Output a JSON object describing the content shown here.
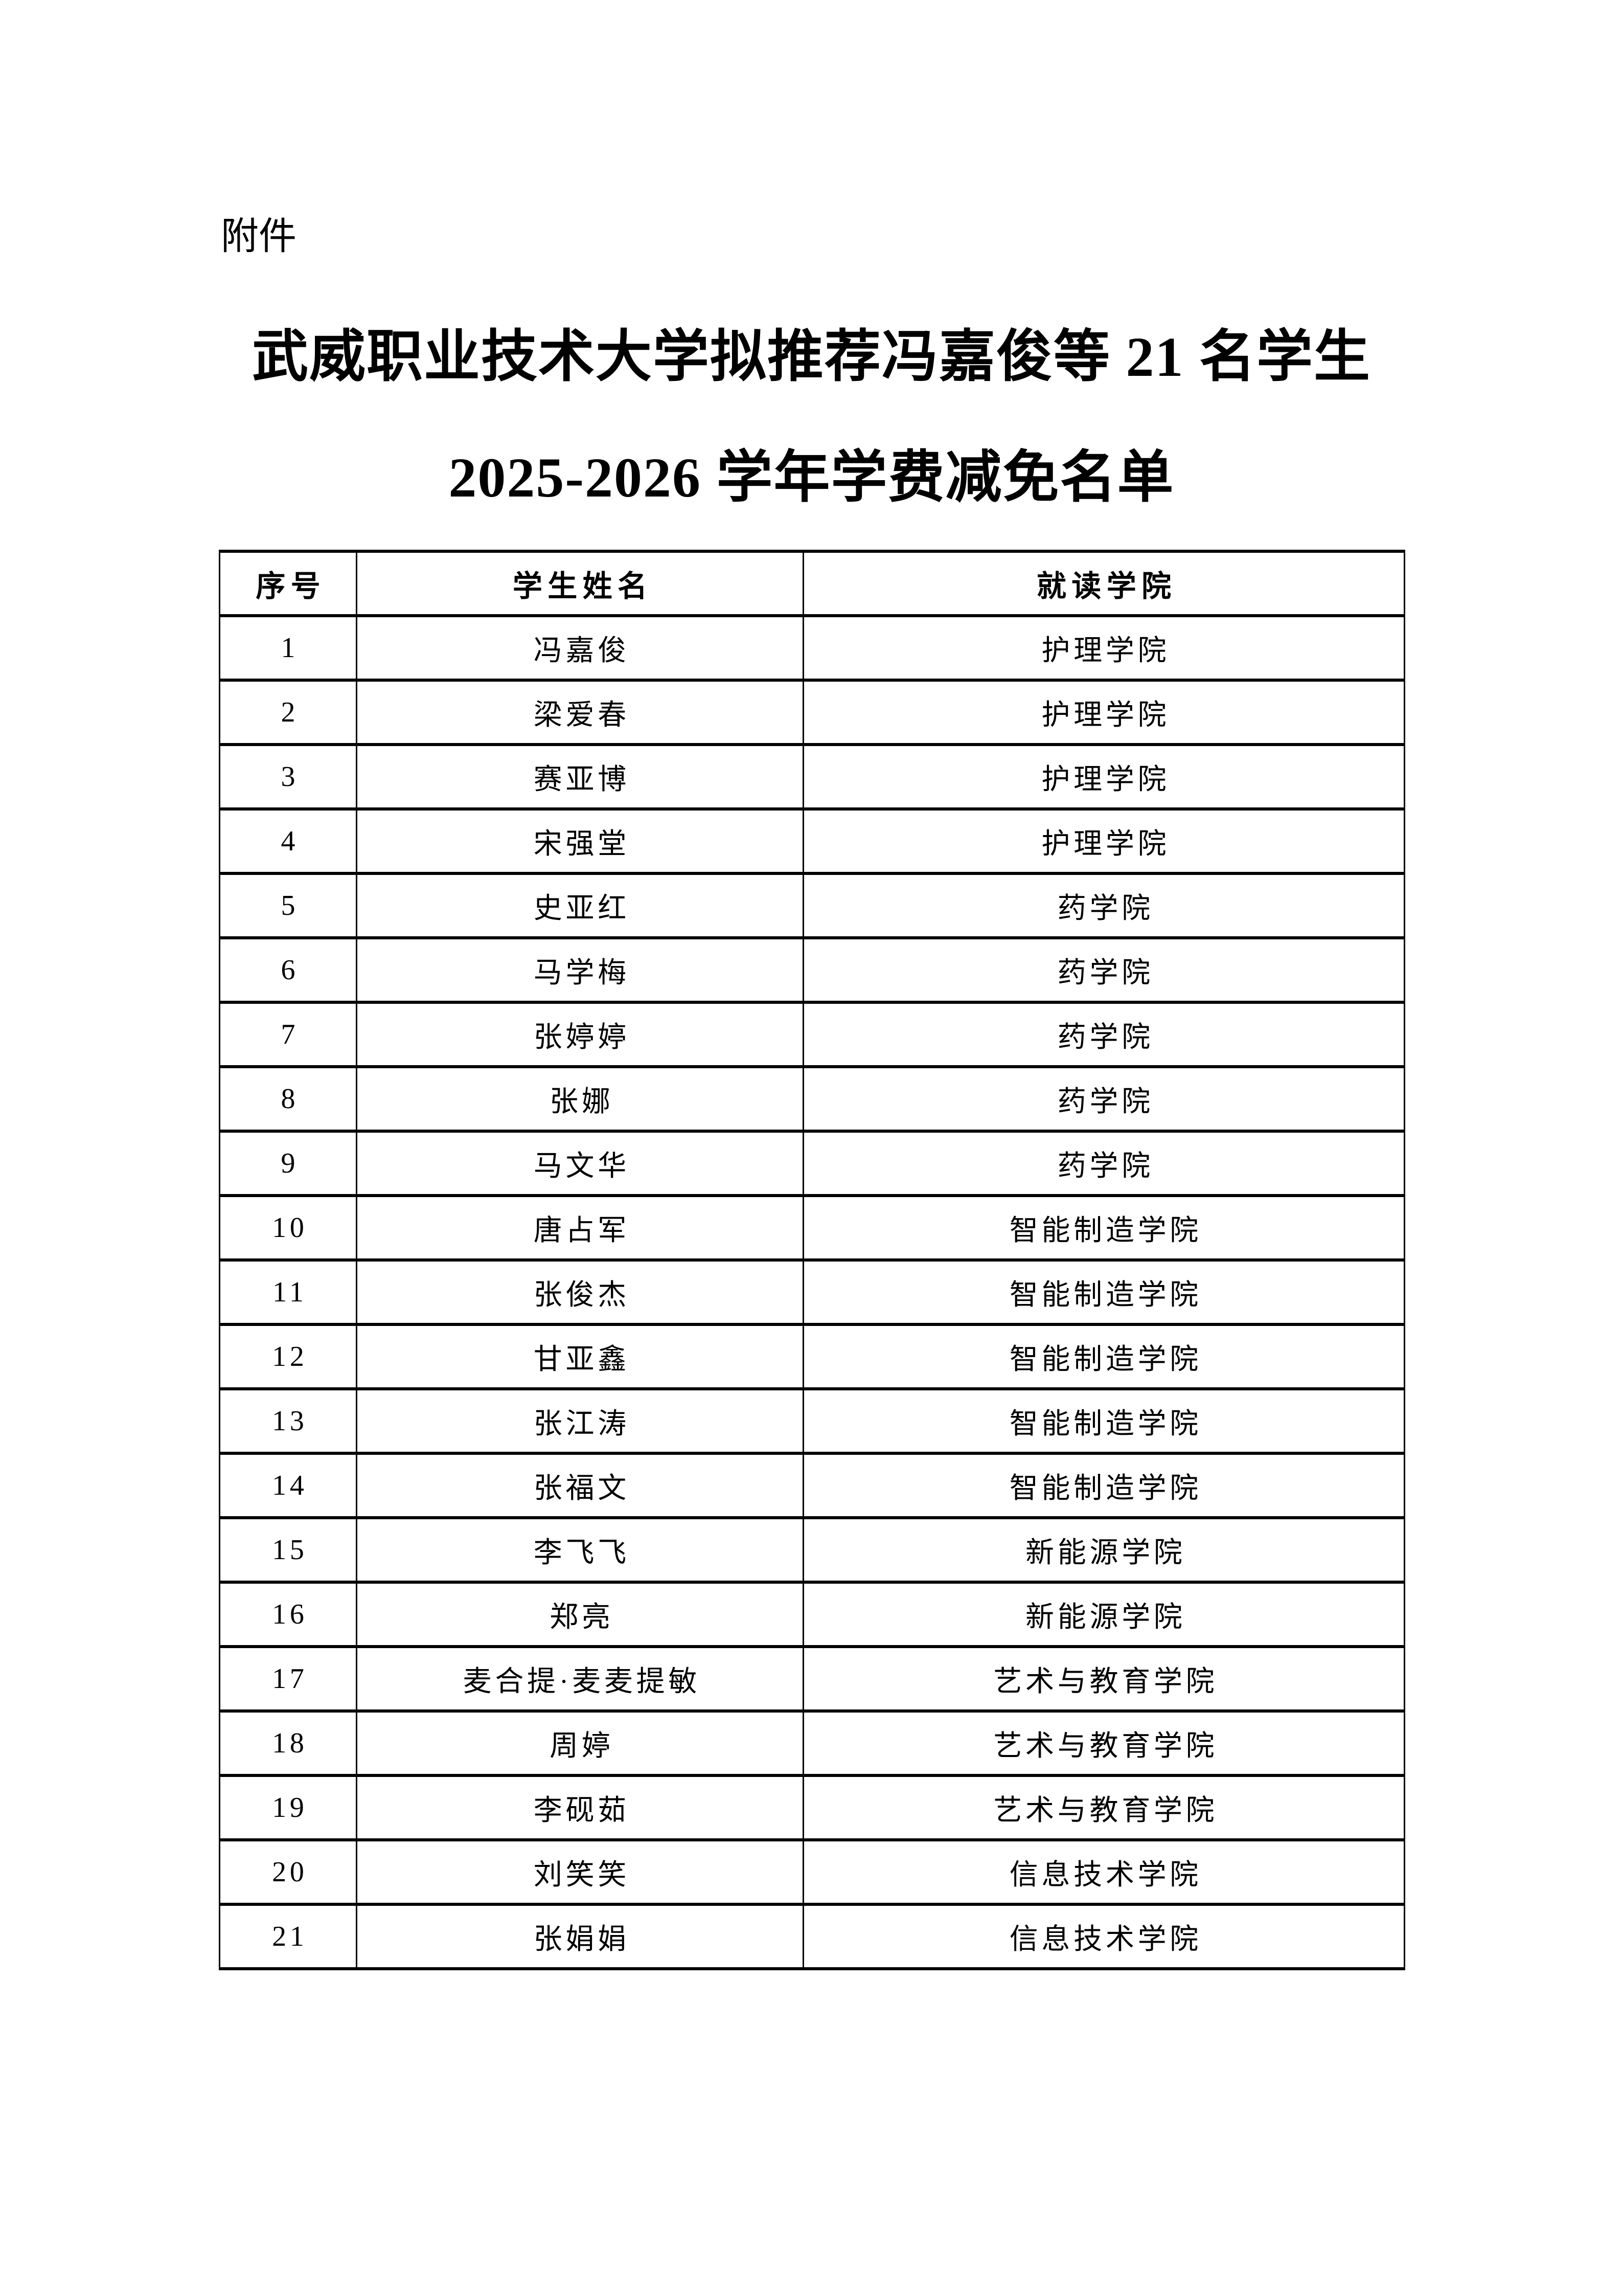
{
  "document": {
    "attachment_label": "附件",
    "title_line1": "武威职业技术大学拟推荐冯嘉俊等 21 名学生",
    "title_line2": "2025-2026 学年学费减免名单"
  },
  "table": {
    "headers": [
      "序号",
      "学生姓名",
      "就读学院"
    ],
    "rows": [
      [
        "1",
        "冯嘉俊",
        "护理学院"
      ],
      [
        "2",
        "梁爱春",
        "护理学院"
      ],
      [
        "3",
        "赛亚博",
        "护理学院"
      ],
      [
        "4",
        "宋强堂",
        "护理学院"
      ],
      [
        "5",
        "史亚红",
        "药学院"
      ],
      [
        "6",
        "马学梅",
        "药学院"
      ],
      [
        "7",
        "张婷婷",
        "药学院"
      ],
      [
        "8",
        "张娜",
        "药学院"
      ],
      [
        "9",
        "马文华",
        "药学院"
      ],
      [
        "10",
        "唐占军",
        "智能制造学院"
      ],
      [
        "11",
        "张俊杰",
        "智能制造学院"
      ],
      [
        "12",
        "甘亚鑫",
        "智能制造学院"
      ],
      [
        "13",
        "张江涛",
        "智能制造学院"
      ],
      [
        "14",
        "张福文",
        "智能制造学院"
      ],
      [
        "15",
        "李飞飞",
        "新能源学院"
      ],
      [
        "16",
        "郑亮",
        "新能源学院"
      ],
      [
        "17",
        "麦合提·麦麦提敏",
        "艺术与教育学院"
      ],
      [
        "18",
        "周婷",
        "艺术与教育学院"
      ],
      [
        "19",
        "李砚茹",
        "艺术与教育学院"
      ],
      [
        "20",
        "刘笑笑",
        "信息技术学院"
      ],
      [
        "21",
        "张娟娟",
        "信息技术学院"
      ]
    ]
  }
}
